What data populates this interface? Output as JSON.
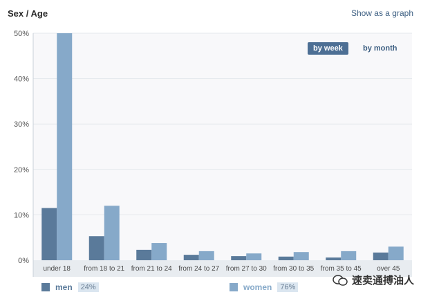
{
  "header": {
    "title": "Sex / Age",
    "show_graph_label": "Show as a graph"
  },
  "toggles": {
    "by_week": "by week",
    "by_month": "by month"
  },
  "colors": {
    "men": "#5a7a9a",
    "women": "#86a9c9",
    "plot_bg": "#f8f8fa",
    "axis_band": "#e8ecf0"
  },
  "chart_data": {
    "type": "bar",
    "title": "Sex / Age",
    "xlabel": "",
    "ylabel": "",
    "ylim": [
      0,
      50
    ],
    "yticks": [
      "0%",
      "10%",
      "20%",
      "30%",
      "40%",
      "50%"
    ],
    "categories": [
      "under 18",
      "from 18 to 21",
      "from 21 to 24",
      "from 24 to 27",
      "from 27 to 30",
      "from 30 to 35",
      "from 35 to 45",
      "over 45"
    ],
    "series": [
      {
        "name": "men",
        "values": [
          11.5,
          5.3,
          2.3,
          1.2,
          0.9,
          0.8,
          0.6,
          1.7
        ]
      },
      {
        "name": "women",
        "values": [
          50,
          12,
          3.8,
          2.0,
          1.5,
          1.8,
          2.0,
          3.0
        ]
      }
    ],
    "legend": [
      {
        "name": "men",
        "share": "24%"
      },
      {
        "name": "women",
        "share": "76%"
      }
    ],
    "grid": true,
    "legend_position": "bottom"
  },
  "watermark": {
    "text": "速卖通搏油人"
  }
}
